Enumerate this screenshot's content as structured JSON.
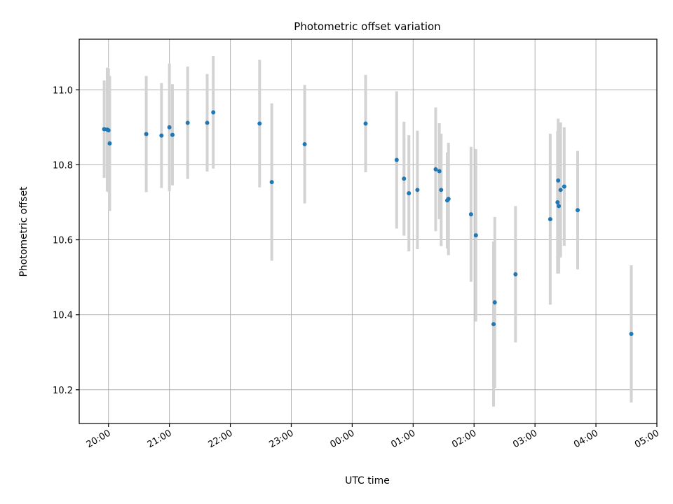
{
  "chart_data": {
    "type": "scatter",
    "title": "Photometric offset variation",
    "xlabel": "UTC time",
    "ylabel": "Photometric offset",
    "grid": true,
    "legend": "none",
    "marker_color": "#1f77b4",
    "errorbar_color": "#d3d3d3",
    "x_unit": "hours since 20:00 UTC",
    "xlim": [
      -0.48,
      9.0
    ],
    "ylim": [
      10.11,
      11.135
    ],
    "x_ticks": [
      {
        "value": 0,
        "label": "20:00"
      },
      {
        "value": 1,
        "label": "21:00"
      },
      {
        "value": 2,
        "label": "22:00"
      },
      {
        "value": 3,
        "label": "23:00"
      },
      {
        "value": 4,
        "label": "00:00"
      },
      {
        "value": 5,
        "label": "01:00"
      },
      {
        "value": 6,
        "label": "02:00"
      },
      {
        "value": 7,
        "label": "03:00"
      },
      {
        "value": 8,
        "label": "04:00"
      },
      {
        "value": 9,
        "label": "05:00"
      }
    ],
    "y_ticks": [
      {
        "value": 10.2,
        "label": "10.2"
      },
      {
        "value": 10.4,
        "label": "10.4"
      },
      {
        "value": 10.6,
        "label": "10.6"
      },
      {
        "value": 10.8,
        "label": "10.8"
      },
      {
        "value": 11.0,
        "label": "11.0"
      }
    ],
    "points": [
      {
        "x": -0.07,
        "y": 10.895,
        "err": 0.13
      },
      {
        "x": -0.02,
        "y": 10.894,
        "err": 0.165
      },
      {
        "x": 0.0,
        "y": 10.892,
        "err": 0.165
      },
      {
        "x": 0.02,
        "y": 10.857,
        "err": 0.18
      },
      {
        "x": 0.62,
        "y": 10.882,
        "err": 0.155
      },
      {
        "x": 0.87,
        "y": 10.878,
        "err": 0.14
      },
      {
        "x": 1.0,
        "y": 10.9,
        "err": 0.17
      },
      {
        "x": 1.05,
        "y": 10.88,
        "err": 0.135
      },
      {
        "x": 1.3,
        "y": 10.912,
        "err": 0.15
      },
      {
        "x": 1.62,
        "y": 10.912,
        "err": 0.13
      },
      {
        "x": 1.72,
        "y": 10.94,
        "err": 0.15
      },
      {
        "x": 2.48,
        "y": 10.91,
        "err": 0.17
      },
      {
        "x": 2.68,
        "y": 10.754,
        "err": 0.21
      },
      {
        "x": 3.22,
        "y": 10.855,
        "err": 0.158
      },
      {
        "x": 4.22,
        "y": 10.91,
        "err": 0.13
      },
      {
        "x": 4.73,
        "y": 10.813,
        "err": 0.183
      },
      {
        "x": 4.85,
        "y": 10.763,
        "err": 0.152
      },
      {
        "x": 4.93,
        "y": 10.724,
        "err": 0.155
      },
      {
        "x": 5.07,
        "y": 10.733,
        "err": 0.158
      },
      {
        "x": 5.37,
        "y": 10.788,
        "err": 0.165
      },
      {
        "x": 5.43,
        "y": 10.783,
        "err": 0.128
      },
      {
        "x": 5.46,
        "y": 10.733,
        "err": 0.15
      },
      {
        "x": 5.56,
        "y": 10.705,
        "err": 0.128
      },
      {
        "x": 5.58,
        "y": 10.709,
        "err": 0.15
      },
      {
        "x": 5.95,
        "y": 10.668,
        "err": 0.18
      },
      {
        "x": 6.03,
        "y": 10.612,
        "err": 0.23
      },
      {
        "x": 6.32,
        "y": 10.375,
        "err": 0.22
      },
      {
        "x": 6.34,
        "y": 10.433,
        "err": 0.228
      },
      {
        "x": 6.68,
        "y": 10.508,
        "err": 0.182
      },
      {
        "x": 7.25,
        "y": 10.655,
        "err": 0.228
      },
      {
        "x": 7.37,
        "y": 10.7,
        "err": 0.19
      },
      {
        "x": 7.38,
        "y": 10.758,
        "err": 0.165
      },
      {
        "x": 7.39,
        "y": 10.69,
        "err": 0.18
      },
      {
        "x": 7.42,
        "y": 10.733,
        "err": 0.18
      },
      {
        "x": 7.48,
        "y": 10.742,
        "err": 0.158
      },
      {
        "x": 7.7,
        "y": 10.679,
        "err": 0.158
      },
      {
        "x": 8.58,
        "y": 10.349,
        "err": 0.183
      }
    ]
  }
}
